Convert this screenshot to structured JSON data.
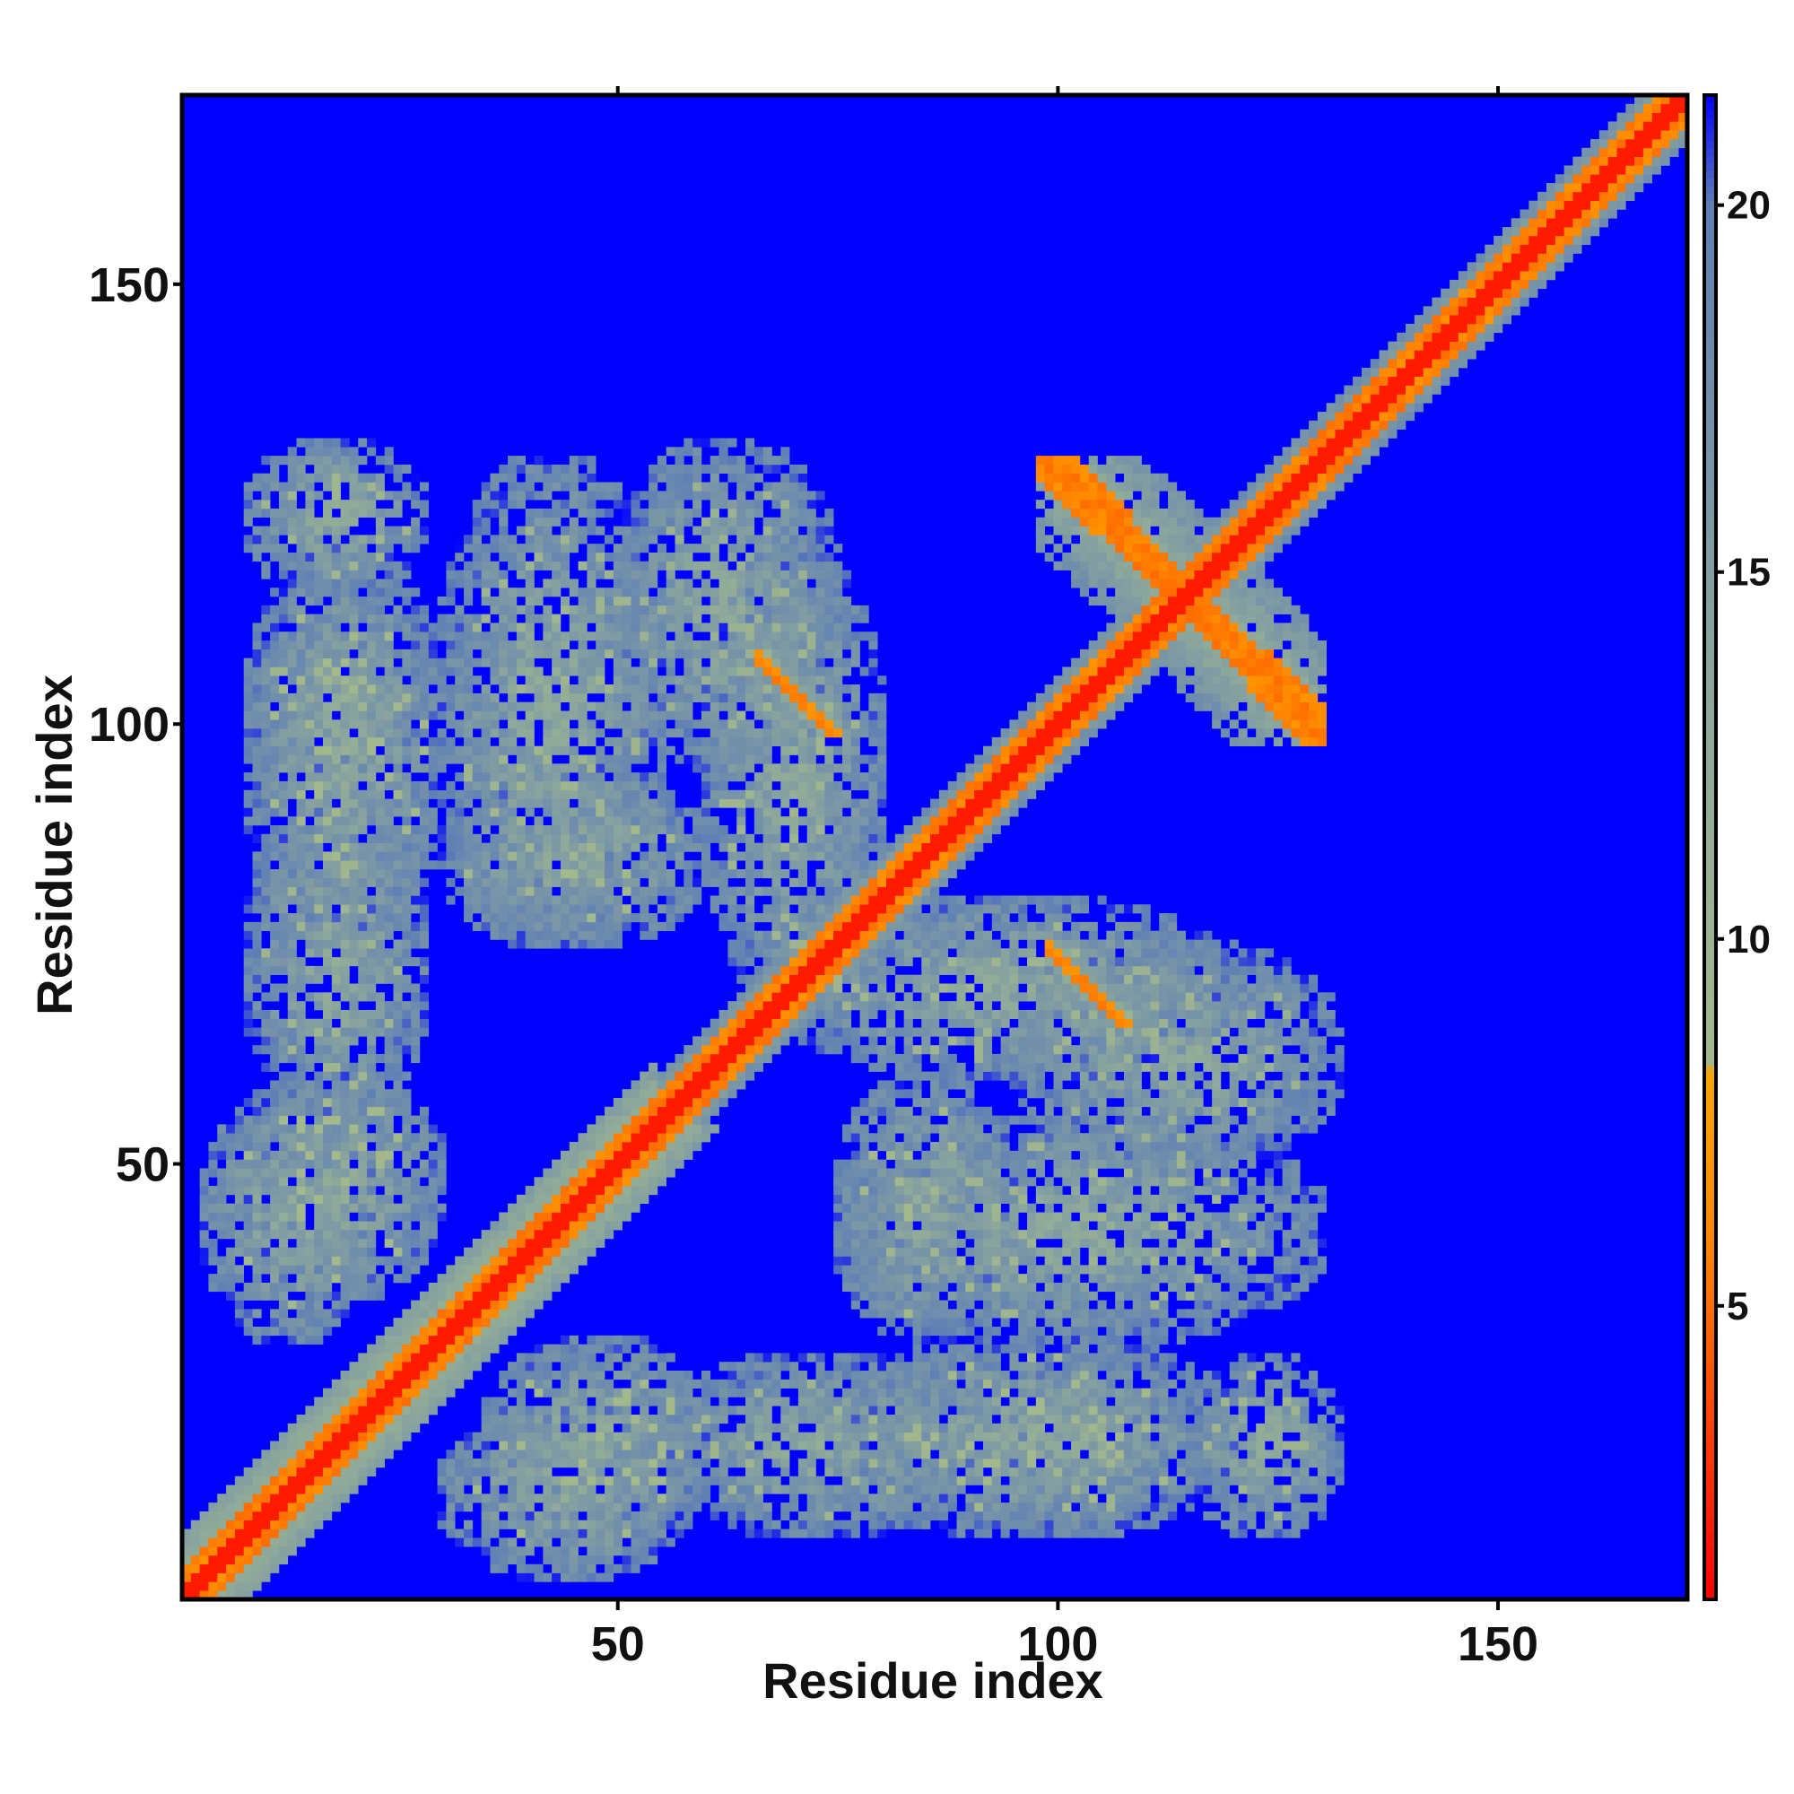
{
  "chart_data": {
    "type": "heatmap",
    "title": "",
    "xlabel": "Residue index",
    "ylabel": "Residue index",
    "n_residues": 171,
    "xlim": [
      1,
      171
    ],
    "ylim": [
      1,
      171
    ],
    "x_ticks": [
      50,
      100,
      150
    ],
    "y_ticks": [
      50,
      100,
      150
    ],
    "x_tick_labels": [
      "50",
      "100",
      "150"
    ],
    "y_tick_labels": [
      "50",
      "100",
      "150"
    ],
    "symmetric": true,
    "background_value": 21.5,
    "value_range": [
      1,
      21.5
    ],
    "colorbar": {
      "ticks": [
        5,
        10,
        15,
        20
      ],
      "tick_labels": [
        "5",
        "10",
        "15",
        "20"
      ],
      "range": [
        1,
        21.5
      ],
      "stops": [
        {
          "value": 1,
          "color": "#ff0000"
        },
        {
          "value": 6,
          "color": "#ff8800"
        },
        {
          "value": 8.2,
          "color": "#ffa500"
        },
        {
          "value": 8.3,
          "color": "#a3b98c"
        },
        {
          "value": 13,
          "color": "#8fa99a"
        },
        {
          "value": 20,
          "color": "#5f7fb5"
        },
        {
          "value": 21.5,
          "color": "#0000ff"
        }
      ]
    },
    "distance_bins": [
      {
        "range": "< 4",
        "color": "#ff0000"
      },
      {
        "range": "4-8",
        "color": "#ff8c00"
      },
      {
        "range": "8-13",
        "color": "#a8bf8c"
      },
      {
        "range": "13-20",
        "color": "#8aa5a3"
      },
      {
        "range": "> 20",
        "color": "#0000ff"
      }
    ],
    "contact_regions": [
      {
        "i": [
          3,
          52
        ],
        "j": [
          1,
          50
        ],
        "kind": "diagonal helix band",
        "min": 5
      },
      {
        "i": [
          52,
          100
        ],
        "j": [
          50,
          98
        ],
        "kind": "diagonal band",
        "min": 5
      },
      {
        "i": [
          100,
          171
        ],
        "j": [
          98,
          169
        ],
        "kind": "diagonal band",
        "min": 5
      },
      {
        "i": [
          3,
          22
        ],
        "j": [
          30,
          58
        ],
        "kind": "block",
        "min": 7
      },
      {
        "i": [
          8,
          30
        ],
        "j": [
          75,
          120
        ],
        "kind": "block",
        "min": 7
      },
      {
        "i": [
          30,
          55
        ],
        "j": [
          75,
          130
        ],
        "kind": "block",
        "min": 8
      },
      {
        "i": [
          35,
          60
        ],
        "j": [
          8,
          30
        ],
        "kind": "block",
        "min": 7
      },
      {
        "i": [
          55,
          90
        ],
        "j": [
          8,
          28
        ],
        "kind": "block",
        "min": 8
      },
      {
        "i": [
          75,
          95
        ],
        "j": [
          30,
          60
        ],
        "kind": "block",
        "min": 7
      },
      {
        "i": [
          60,
          80
        ],
        "j": [
          68,
          120
        ],
        "kind": "block",
        "min": 8
      },
      {
        "i": [
          95,
          110
        ],
        "j": [
          8,
          28
        ],
        "kind": "block",
        "min": 8
      },
      {
        "i": [
          115,
          132
        ],
        "j": [
          8,
          28
        ],
        "kind": "block",
        "min": 8
      },
      {
        "i": [
          95,
          132
        ],
        "j": [
          50,
          75
        ],
        "kind": "block",
        "min": 9
      },
      {
        "i": [
          98,
          130
        ],
        "j": [
          100,
          130
        ],
        "kind": "anti-diagonal hairpin",
        "min": 5
      },
      {
        "i": [
          66,
          75
        ],
        "j": [
          99,
          107
        ],
        "kind": "anti-diagonal hairpin",
        "min": 5
      },
      {
        "i": [
          99,
          108
        ],
        "j": [
          66,
          74
        ],
        "kind": "anti-diagonal hairpin",
        "min": 5
      },
      {
        "i": [
          140,
          160
        ],
        "j": [
          140,
          160
        ],
        "kind": "diagonal widening",
        "min": 5
      }
    ]
  }
}
